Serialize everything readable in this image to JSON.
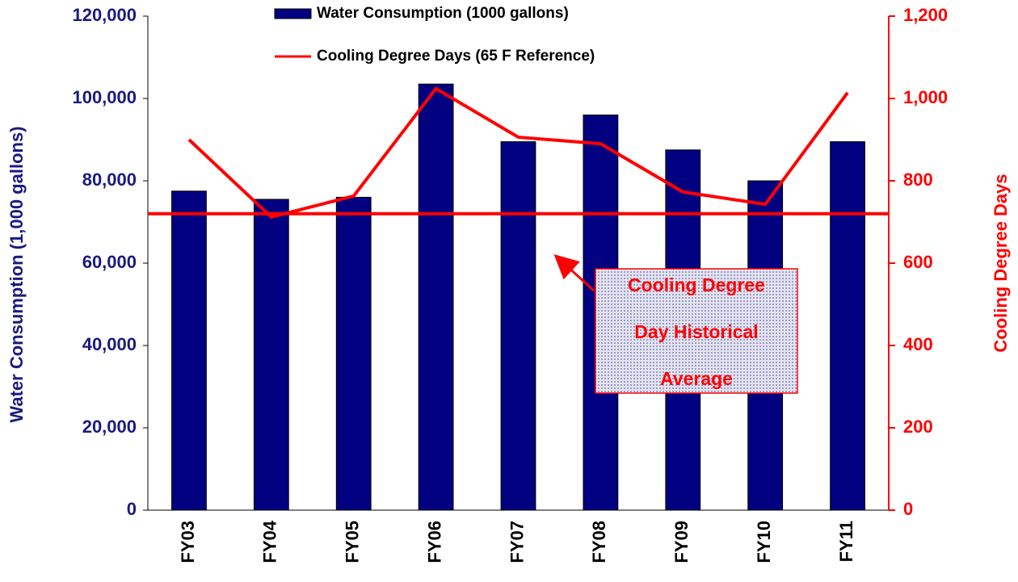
{
  "chart_data": {
    "type": "bar-line",
    "categories": [
      "FY03",
      "FY04",
      "FY05",
      "FY06",
      "FY07",
      "FY08",
      "FY09",
      "FY10",
      "FY11"
    ],
    "series": [
      {
        "name": "Water Consumption (1000 gallons)",
        "type": "bar",
        "color": "#000080",
        "values": [
          77500,
          75500,
          76000,
          103500,
          89500,
          96000,
          87500,
          80000,
          89500
        ]
      },
      {
        "name": "Cooling Degree Days (65 F Reference)",
        "type": "line",
        "axis": "y2",
        "color": "#ff0000",
        "values": [
          900,
          712,
          763,
          1024,
          906,
          890,
          773,
          743,
          1014
        ]
      }
    ],
    "y_label": "Water Consumption (1,000 gallons)",
    "y2_label": "Cooling Degree Days",
    "ylim": [
      0,
      120000
    ],
    "yticks": [
      0,
      {
        "value": 20000,
        "label": "20,000"
      },
      {
        "value": 40000,
        "label": "40,000"
      },
      {
        "value": 60000,
        "label": "60,000"
      },
      {
        "value": 80000,
        "label": "80,000"
      },
      {
        "value": 100000,
        "label": "100,000"
      },
      {
        "value": 120000,
        "label": "120,000"
      }
    ],
    "y2lim": [
      0,
      1200
    ],
    "y2ticks": [
      0,
      200,
      400,
      600,
      800,
      {
        "value": 1000,
        "label": "1,000"
      },
      {
        "value": 1200,
        "label": "1,200"
      }
    ],
    "reference_line": {
      "value": 720,
      "axis": "y2",
      "color": "#ff0000",
      "annotation": [
        "Cooling Degree",
        "Day Historical",
        "Average"
      ]
    }
  }
}
